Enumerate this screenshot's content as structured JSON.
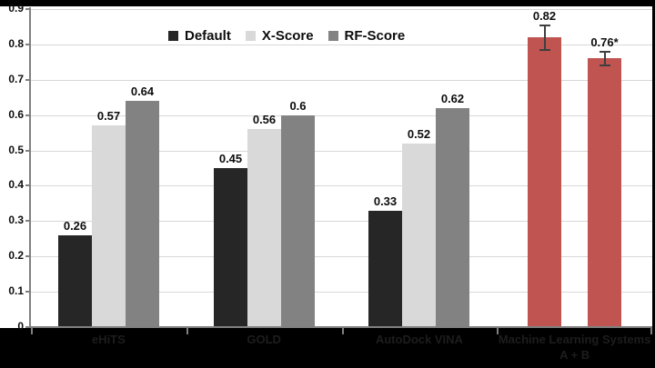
{
  "page": {
    "background": "#000000"
  },
  "chart_data": {
    "type": "bar",
    "title": "",
    "xlabel": "",
    "ylabel": "",
    "ylim": [
      0,
      0.9
    ],
    "ytick_step": 0.1,
    "grid": true,
    "plot_background": "#FFFFFF",
    "gridline_color": "#D8D8D8",
    "axis_color": "#808080",
    "value_label_color": "#0D0D0D",
    "category_label_color": "#1D1D1D",
    "error_bar_color": "#3F3F3F",
    "legend": {
      "position": "top-center",
      "items": [
        {
          "label": "Default",
          "color": "#262626"
        },
        {
          "label": "X-Score",
          "color": "#D9D9D9"
        },
        {
          "label": "RF-Score",
          "color": "#828282"
        }
      ]
    },
    "groups": [
      {
        "category": "eHiTS",
        "bars": [
          {
            "series": "Default",
            "value": 0.26,
            "label": "0.26",
            "color": "#262626"
          },
          {
            "series": "X-Score",
            "value": 0.57,
            "label": "0.57",
            "color": "#D9D9D9"
          },
          {
            "series": "RF-Score",
            "value": 0.64,
            "label": "0.64",
            "color": "#828282"
          }
        ]
      },
      {
        "category": "GOLD",
        "bars": [
          {
            "series": "Default",
            "value": 0.45,
            "label": "0.45",
            "color": "#262626"
          },
          {
            "series": "X-Score",
            "value": 0.56,
            "label": "0.56",
            "color": "#D9D9D9"
          },
          {
            "series": "RF-Score",
            "value": 0.6,
            "label": "0.6",
            "color": "#828282"
          }
        ]
      },
      {
        "category": "AutoDock VINA",
        "bars": [
          {
            "series": "Default",
            "value": 0.33,
            "label": "0.33",
            "color": "#262626"
          },
          {
            "series": "X-Score",
            "value": 0.52,
            "label": "0.52",
            "color": "#D9D9D9"
          },
          {
            "series": "RF-Score",
            "value": 0.62,
            "label": "0.62",
            "color": "#828282"
          }
        ]
      },
      {
        "category": "Machine Learning Systems\nA + B",
        "bars": [
          {
            "series": "Machine Learning Systems",
            "value": 0.82,
            "label": "0.82",
            "color": "#C05451",
            "error": 0.035
          },
          {
            "series": "Machine Learning Systems",
            "value": 0.76,
            "label": "0.76*",
            "color": "#C05451",
            "error": 0.02
          }
        ]
      }
    ]
  }
}
